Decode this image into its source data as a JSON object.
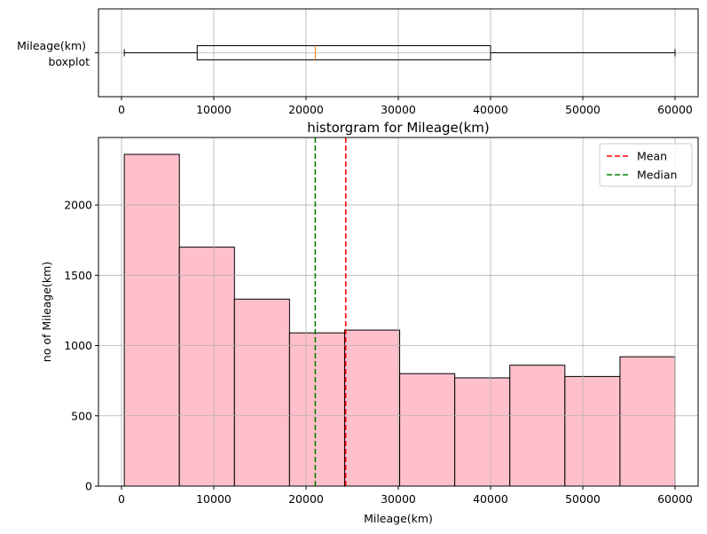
{
  "chart_data": [
    {
      "type": "boxplot",
      "ylabel_lines": [
        "Mileage(km)",
        "boxplot"
      ],
      "xlim": [
        -2500,
        62500
      ],
      "x_ticks": [
        0,
        10000,
        20000,
        30000,
        40000,
        50000,
        60000
      ],
      "x_tick_labels": [
        "0",
        "10000",
        "20000",
        "30000",
        "40000",
        "50000",
        "60000"
      ],
      "stats": {
        "whisker_low": 300,
        "q1": 8200,
        "median": 21000,
        "q3": 40000,
        "whisker_high": 60000
      },
      "median_color": "#ff7f0e",
      "grid": true
    },
    {
      "type": "histogram",
      "title": "historgram for Mileage(km)",
      "xlabel": "Mileage(km)",
      "ylabel": "no of Mileage(km)",
      "xlim": [
        -2500,
        62500
      ],
      "ylim": [
        0,
        2480
      ],
      "x_ticks": [
        0,
        10000,
        20000,
        30000,
        40000,
        50000,
        60000
      ],
      "x_tick_labels": [
        "0",
        "10000",
        "20000",
        "30000",
        "40000",
        "50000",
        "60000"
      ],
      "y_ticks": [
        0,
        500,
        1000,
        1500,
        2000
      ],
      "y_tick_labels": [
        "0",
        "500",
        "1000",
        "1500",
        "2000"
      ],
      "bin_edges": [
        300,
        6270,
        12240,
        18210,
        24180,
        30150,
        36120,
        42090,
        48060,
        54030,
        60000
      ],
      "counts": [
        2360,
        1700,
        1330,
        1090,
        1110,
        800,
        770,
        860,
        780,
        920
      ],
      "bar_color": "#ffc0cb",
      "edge_color": "#000000",
      "vlines": [
        {
          "name": "Mean",
          "x": 24300,
          "color": "#ff0000"
        },
        {
          "name": "Median",
          "x": 21000,
          "color": "#008000"
        }
      ],
      "legend_position": "top-right",
      "grid": true
    }
  ]
}
